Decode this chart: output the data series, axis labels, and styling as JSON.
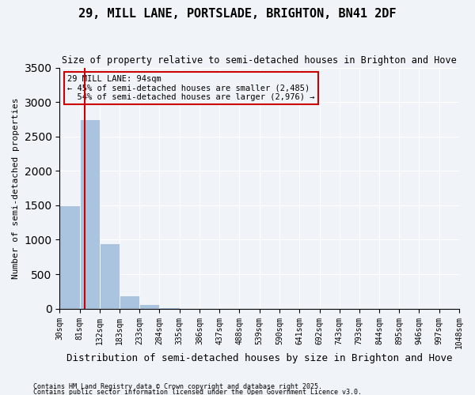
{
  "title": "29, MILL LANE, PORTSLADE, BRIGHTON, BN41 2DF",
  "subtitle": "Size of property relative to semi-detached houses in Brighton and Hove",
  "xlabel": "Distribution of semi-detached houses by size in Brighton and Hove",
  "ylabel": "Number of semi-detached properties",
  "bin_labels": [
    "30sqm",
    "81sqm",
    "132sqm",
    "183sqm",
    "233sqm",
    "284sqm",
    "335sqm",
    "386sqm",
    "437sqm",
    "488sqm",
    "539sqm",
    "590sqm",
    "641sqm",
    "692sqm",
    "743sqm",
    "793sqm",
    "844sqm",
    "895sqm",
    "946sqm",
    "997sqm",
    "1048sqm"
  ],
  "bin_edges": [
    30,
    81,
    132,
    183,
    233,
    284,
    335,
    386,
    437,
    488,
    539,
    590,
    641,
    692,
    743,
    793,
    844,
    895,
    946,
    997,
    1048
  ],
  "counts": [
    1500,
    2750,
    950,
    190,
    60,
    20,
    5,
    3,
    2,
    2,
    1,
    1,
    1,
    1,
    1,
    1,
    1,
    0,
    0,
    0
  ],
  "property_size": 94,
  "property_label": "29 MILL LANE: 94sqm",
  "pct_smaller": 45,
  "pct_larger": 54,
  "n_smaller": 2485,
  "n_larger": 2976,
  "bar_color": "#aac4e0",
  "line_color": "#cc0000",
  "box_edge_color": "#cc0000",
  "background_color": "#f0f4f8",
  "footnote1": "Contains HM Land Registry data © Crown copyright and database right 2025.",
  "footnote2": "Contains public sector information licensed under the Open Government Licence v3.0.",
  "ylim": [
    0,
    3500
  ]
}
